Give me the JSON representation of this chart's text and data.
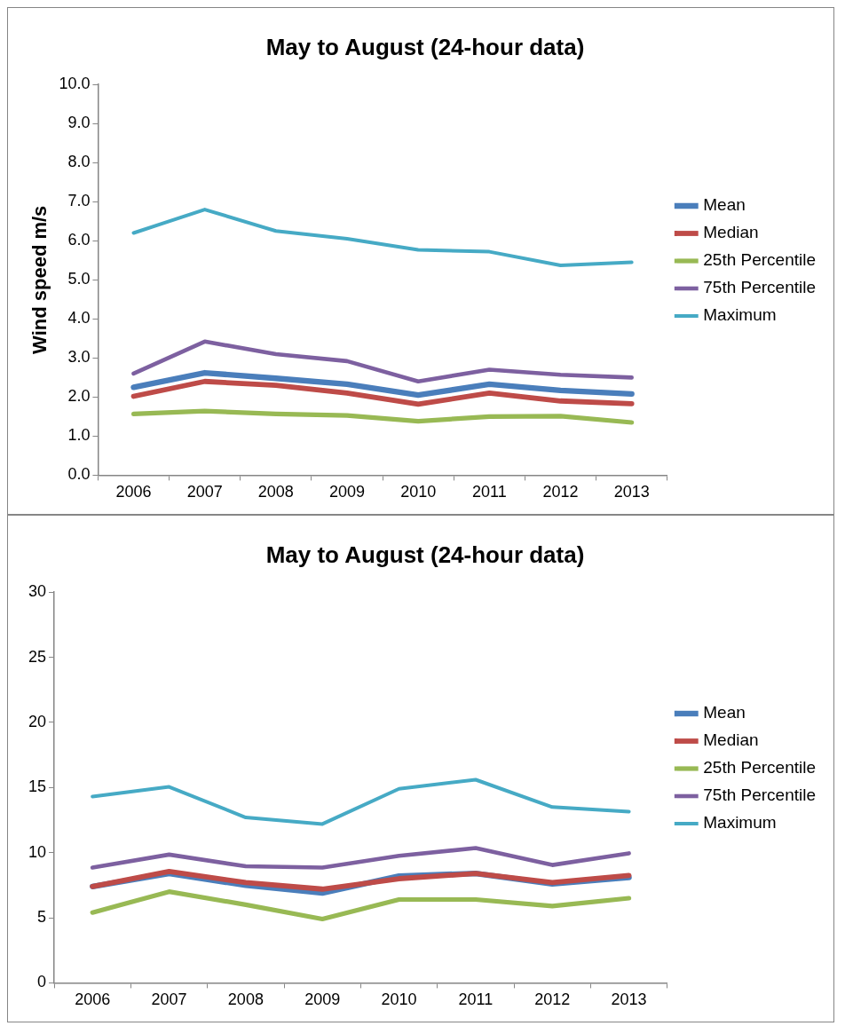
{
  "chart_data": [
    {
      "type": "line",
      "title": "May to August (24-hour data)",
      "ylabel": "Wind speed m/s",
      "categories": [
        "2006",
        "2007",
        "2008",
        "2009",
        "2010",
        "2011",
        "2012",
        "2013"
      ],
      "series": [
        {
          "name": "Mean",
          "color": "#4a7ebb",
          "values": [
            2.25,
            2.62,
            2.48,
            2.33,
            2.05,
            2.33,
            2.17,
            2.08
          ]
        },
        {
          "name": "Median",
          "color": "#be4b48",
          "values": [
            2.02,
            2.4,
            2.3,
            2.1,
            1.82,
            2.1,
            1.9,
            1.83
          ]
        },
        {
          "name": "25th Percentile",
          "color": "#98b954",
          "values": [
            1.57,
            1.64,
            1.57,
            1.53,
            1.38,
            1.5,
            1.51,
            1.35
          ]
        },
        {
          "name": "75th Percentile",
          "color": "#7d60a0",
          "values": [
            2.6,
            3.42,
            3.1,
            2.92,
            2.4,
            2.7,
            2.57,
            2.5
          ]
        },
        {
          "name": "Maximum",
          "color": "#46aac5",
          "values": [
            6.2,
            6.8,
            6.25,
            6.05,
            5.77,
            5.72,
            5.37,
            5.45
          ]
        }
      ],
      "ylim": [
        0,
        10
      ],
      "yticks": [
        {
          "value": 0,
          "label": "0.0"
        },
        {
          "value": 1,
          "label": "1.0"
        },
        {
          "value": 2,
          "label": "2.0"
        },
        {
          "value": 3,
          "label": "3.0"
        },
        {
          "value": 4,
          "label": "4.0"
        },
        {
          "value": 5,
          "label": "5.0"
        },
        {
          "value": 6,
          "label": "6.0"
        },
        {
          "value": 7,
          "label": "7.0"
        },
        {
          "value": 8,
          "label": "8.0"
        },
        {
          "value": 9,
          "label": "9.0"
        },
        {
          "value": 10,
          "label": "10.0"
        }
      ],
      "grid": false,
      "legend": "right",
      "marker": "none",
      "line_style": "solid"
    },
    {
      "type": "line",
      "title": "May to August (24-hour data)",
      "categories": [
        "2006",
        "2007",
        "2008",
        "2009",
        "2010",
        "2011",
        "2012",
        "2013"
      ],
      "series": [
        {
          "name": "Mean",
          "color": "#4a7ebb",
          "values": [
            7.4,
            8.4,
            7.5,
            6.9,
            8.2,
            8.4,
            7.6,
            8.1
          ]
        },
        {
          "name": "Median",
          "color": "#be4b48",
          "values": [
            7.4,
            8.55,
            7.7,
            7.2,
            8.0,
            8.4,
            7.7,
            8.25
          ]
        },
        {
          "name": "25th Percentile",
          "color": "#98b954",
          "values": [
            5.4,
            7.0,
            6.0,
            4.9,
            6.4,
            6.4,
            5.9,
            6.5
          ]
        },
        {
          "name": "75th Percentile",
          "color": "#7d60a0",
          "values": [
            8.85,
            9.85,
            8.95,
            8.85,
            9.75,
            10.35,
            9.05,
            9.95
          ]
        },
        {
          "name": "Maximum",
          "color": "#46aac5",
          "values": [
            14.3,
            15.05,
            12.7,
            12.2,
            14.9,
            15.6,
            13.5,
            13.15
          ]
        }
      ],
      "ylim": [
        0,
        30
      ],
      "yticks": [
        0,
        5,
        10,
        15,
        20,
        25,
        30
      ],
      "grid": false,
      "legend": "right",
      "marker": "none",
      "line_style": "solid"
    }
  ]
}
